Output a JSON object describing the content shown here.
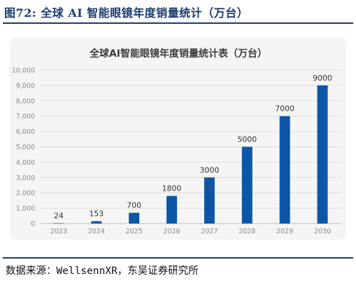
{
  "figure": {
    "title": "图72:  全球 AI 智能眼镜年度销量统计（万台）"
  },
  "source": {
    "text": "数据来源：WellsennXR，东吴证券研究所"
  },
  "colors": {
    "bar": "#0d56a6",
    "title": "#1a3b6e",
    "card_background": "#f5f5f5",
    "gridline": "#dcdcdc"
  },
  "chart_data": {
    "type": "bar",
    "title": "全球AI智能眼镜年度销量统计表（万台）",
    "xlabel": "",
    "ylabel": "",
    "categories": [
      "2023",
      "2024",
      "2025",
      "2026",
      "2027",
      "2028",
      "2029",
      "2030"
    ],
    "values": [
      24,
      153,
      700,
      1800,
      3000,
      5000,
      7000,
      9000
    ],
    "data_labels": [
      "24",
      "153",
      "700",
      "1800",
      "3000",
      "5000",
      "7000",
      "9000"
    ],
    "ylim": [
      0,
      10000
    ],
    "yticks": [
      0,
      1000,
      2000,
      3000,
      4000,
      5000,
      6000,
      7000,
      8000,
      9000,
      10000
    ],
    "ytick_labels": [
      "0",
      "1,000",
      "2,000",
      "3,000",
      "4,000",
      "5,000",
      "6,000",
      "7,000",
      "8,000",
      "9,000",
      "10,000"
    ],
    "grid": true,
    "legend": "none"
  }
}
